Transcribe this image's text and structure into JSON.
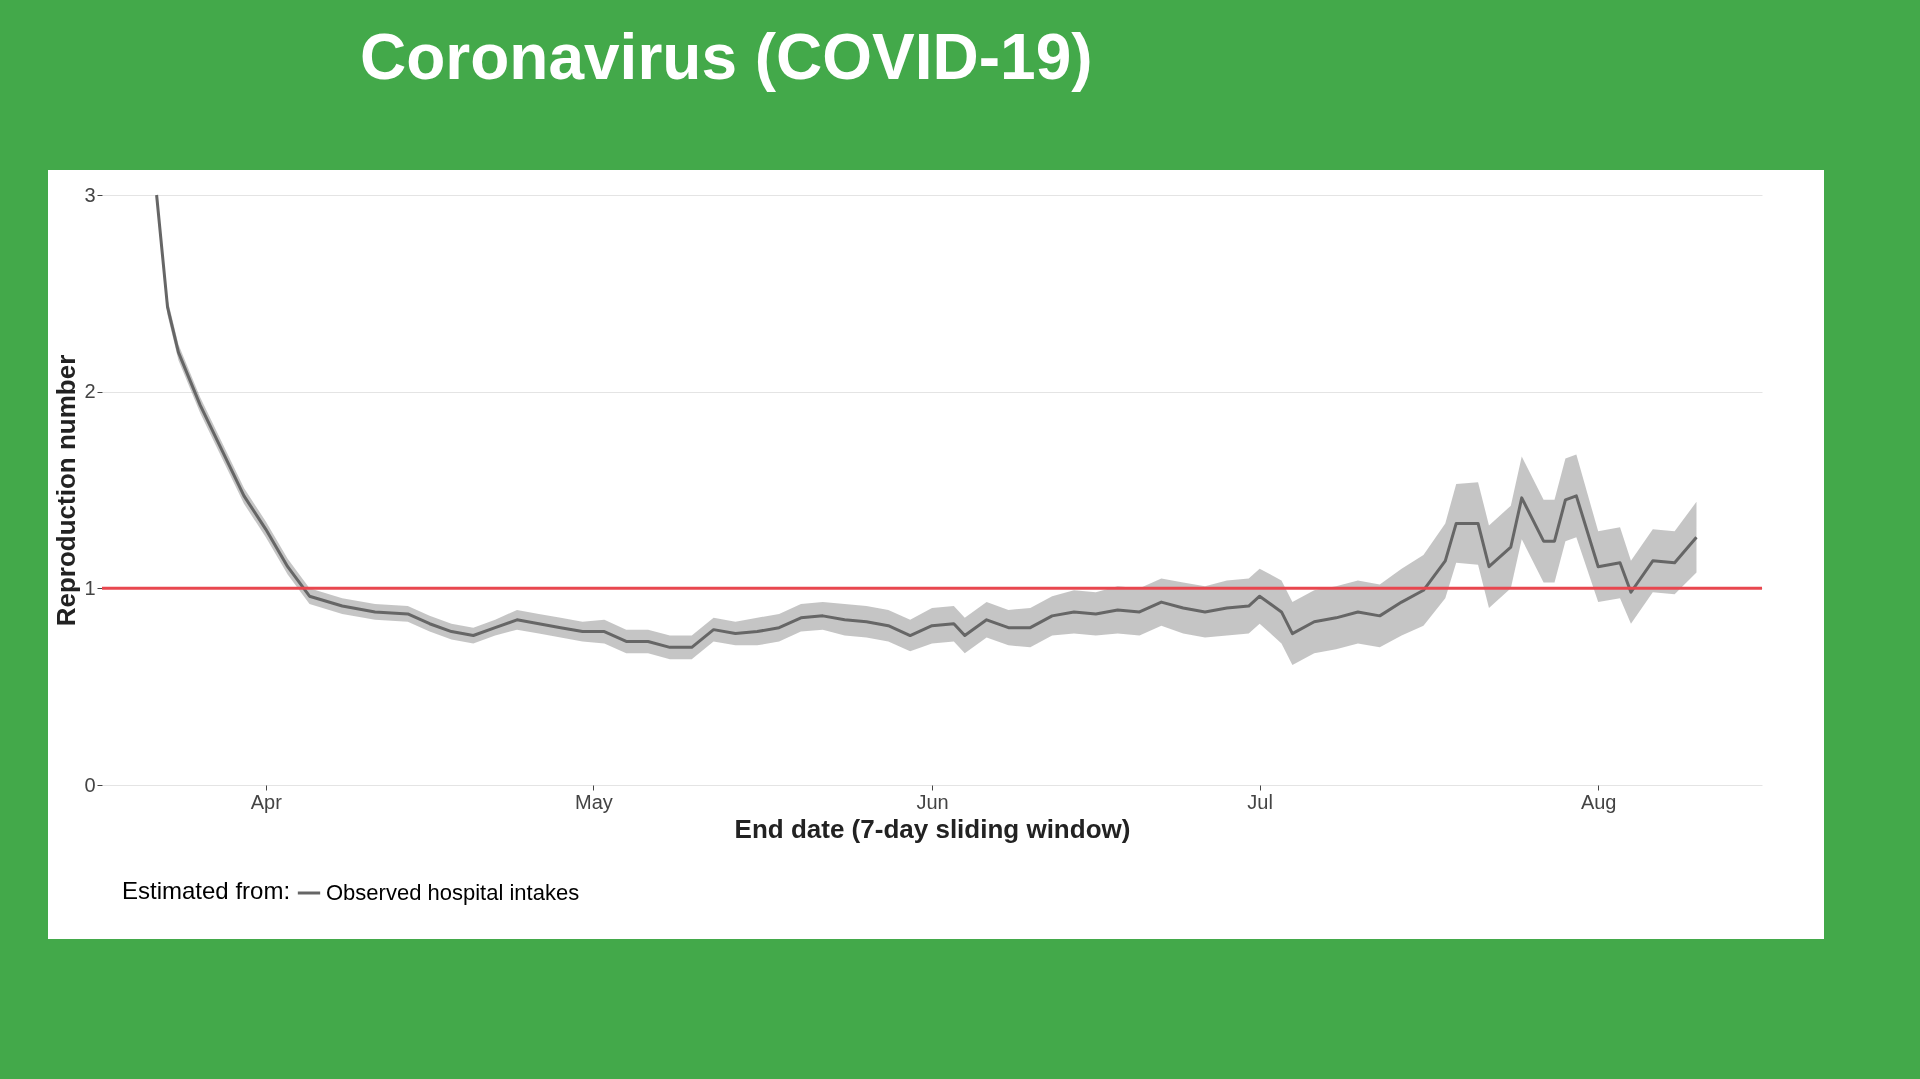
{
  "chart_data": {
    "type": "line",
    "title": "Coronavirus (COVID-19)",
    "xlabel": "End date (7-day sliding window)",
    "ylabel": "Reproduction number",
    "legend_title": "Estimated from:",
    "legend": "bottom",
    "grid": "y",
    "xlim": [
      "--03-17",
      "--08-16"
    ],
    "xticks": [
      {
        "value": "--04-01",
        "label": "Apr"
      },
      {
        "value": "--05-01",
        "label": "May"
      },
      {
        "value": "--06-01",
        "label": "Jun"
      },
      {
        "value": "--07-01",
        "label": "Jul"
      },
      {
        "value": "--08-01",
        "label": "Aug"
      }
    ],
    "ylim": [
      0,
      3
    ],
    "yticks": [
      0,
      1,
      2,
      3
    ],
    "ref_lines": [
      {
        "axis": "y",
        "value": 1,
        "color": "#e8474f"
      }
    ],
    "series": [
      {
        "name": "Observed hospital intakes",
        "color": "#666666",
        "x": [
          "--03-22",
          "--03-23",
          "--03-24",
          "--03-26",
          "--03-28",
          "--03-30",
          "--04-01",
          "--04-03",
          "--04-05",
          "--04-08",
          "--04-11",
          "--04-14",
          "--04-16",
          "--04-18",
          "--04-20",
          "--04-22",
          "--04-24",
          "--04-26",
          "--04-28",
          "--04-30",
          "--05-02",
          "--05-04",
          "--05-06",
          "--05-08",
          "--05-10",
          "--05-12",
          "--05-14",
          "--05-16",
          "--05-18",
          "--05-20",
          "--05-22",
          "--05-24",
          "--05-26",
          "--05-28",
          "--05-30",
          "--06-01",
          "--06-03",
          "--06-04",
          "--06-06",
          "--06-08",
          "--06-10",
          "--06-12",
          "--06-14",
          "--06-16",
          "--06-18",
          "--06-20",
          "--06-22",
          "--06-24",
          "--06-26",
          "--06-28",
          "--06-30",
          "--07-01",
          "--07-03",
          "--07-04",
          "--07-06",
          "--07-08",
          "--07-10",
          "--07-12",
          "--07-14",
          "--07-16",
          "--07-18",
          "--07-19",
          "--07-21",
          "--07-22",
          "--07-24",
          "--07-25",
          "--07-27",
          "--07-28",
          "--07-29",
          "--07-30",
          "--08-01",
          "--08-03",
          "--08-04",
          "--08-06",
          "--08-08",
          "--08-10"
        ],
        "values": [
          3.0,
          2.43,
          2.2,
          1.93,
          1.7,
          1.47,
          1.3,
          1.11,
          0.96,
          0.91,
          0.88,
          0.87,
          0.82,
          0.78,
          0.76,
          0.8,
          0.84,
          0.82,
          0.8,
          0.78,
          0.78,
          0.73,
          0.73,
          0.7,
          0.7,
          0.79,
          0.77,
          0.78,
          0.8,
          0.85,
          0.86,
          0.84,
          0.83,
          0.81,
          0.76,
          0.81,
          0.82,
          0.76,
          0.84,
          0.8,
          0.8,
          0.86,
          0.88,
          0.87,
          0.89,
          0.88,
          0.93,
          0.9,
          0.88,
          0.9,
          0.91,
          0.96,
          0.88,
          0.77,
          0.83,
          0.85,
          0.88,
          0.86,
          0.93,
          0.99,
          1.14,
          1.33,
          1.33,
          1.11,
          1.21,
          1.46,
          1.24,
          1.24,
          1.45,
          1.47,
          1.11,
          1.13,
          0.98,
          1.14,
          1.13,
          1.26
        ],
        "lower": [
          2.96,
          2.39,
          2.16,
          1.89,
          1.66,
          1.43,
          1.26,
          1.07,
          0.92,
          0.87,
          0.84,
          0.83,
          0.78,
          0.74,
          0.72,
          0.76,
          0.79,
          0.77,
          0.75,
          0.73,
          0.72,
          0.67,
          0.67,
          0.64,
          0.64,
          0.73,
          0.71,
          0.71,
          0.73,
          0.78,
          0.79,
          0.76,
          0.75,
          0.73,
          0.68,
          0.72,
          0.73,
          0.67,
          0.75,
          0.71,
          0.7,
          0.76,
          0.77,
          0.76,
          0.77,
          0.76,
          0.81,
          0.77,
          0.75,
          0.76,
          0.77,
          0.82,
          0.72,
          0.61,
          0.67,
          0.69,
          0.72,
          0.7,
          0.76,
          0.81,
          0.95,
          1.13,
          1.12,
          0.9,
          1.0,
          1.25,
          1.03,
          1.03,
          1.24,
          1.26,
          0.93,
          0.95,
          0.82,
          0.98,
          0.97,
          1.08
        ],
        "upper": [
          3.0,
          2.47,
          2.24,
          1.97,
          1.74,
          1.51,
          1.34,
          1.15,
          1.0,
          0.95,
          0.92,
          0.91,
          0.86,
          0.82,
          0.8,
          0.84,
          0.89,
          0.87,
          0.85,
          0.83,
          0.84,
          0.79,
          0.79,
          0.76,
          0.76,
          0.85,
          0.83,
          0.85,
          0.87,
          0.92,
          0.93,
          0.92,
          0.91,
          0.89,
          0.84,
          0.9,
          0.91,
          0.85,
          0.93,
          0.89,
          0.9,
          0.96,
          0.99,
          0.98,
          1.01,
          1.0,
          1.05,
          1.03,
          1.01,
          1.04,
          1.05,
          1.1,
          1.04,
          0.93,
          0.99,
          1.01,
          1.04,
          1.02,
          1.1,
          1.17,
          1.33,
          1.53,
          1.54,
          1.32,
          1.42,
          1.67,
          1.45,
          1.45,
          1.66,
          1.68,
          1.29,
          1.31,
          1.14,
          1.3,
          1.29,
          1.44
        ]
      }
    ]
  }
}
